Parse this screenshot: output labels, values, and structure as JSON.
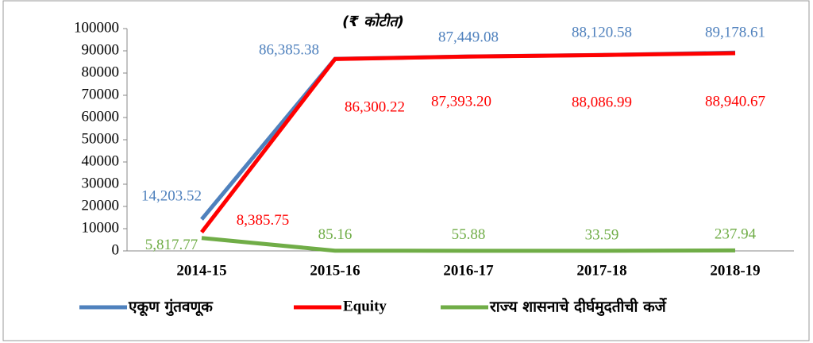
{
  "chart_data": {
    "type": "line",
    "subtitle": "(₹ कोटीत)",
    "categories": [
      "2014-15",
      "2015-16",
      "2016-17",
      "2017-18",
      "2018-19"
    ],
    "series": [
      {
        "name": "एकूण गुंतवणूक",
        "color": "#4f81bd",
        "values": [
          14203.52,
          86385.38,
          87449.08,
          88120.58,
          89178.61
        ],
        "value_labels": [
          "14,203.52",
          "86,385.38",
          "87,449.08",
          "88,120.58",
          "89,178.61"
        ]
      },
      {
        "name": "Equity",
        "color": "#ff0000",
        "values": [
          8385.75,
          86300.22,
          87393.2,
          88086.99,
          88940.67
        ],
        "value_labels": [
          "8,385.75",
          "86,300.22",
          "87,393.20",
          "88,086.99",
          "88,940.67"
        ]
      },
      {
        "name": "राज्य शासनाचे दीर्घमुदतीची कर्जे",
        "color": "#70ad47",
        "values": [
          5817.77,
          85.16,
          55.88,
          33.59,
          237.94
        ],
        "value_labels": [
          "5,817.77",
          "85.16",
          "55.88",
          "33.59",
          "237.94"
        ]
      }
    ],
    "ylim": [
      0,
      100000
    ],
    "yticks": [
      0,
      10000,
      20000,
      30000,
      40000,
      50000,
      60000,
      70000,
      80000,
      90000,
      100000
    ],
    "legend": "bottom"
  }
}
